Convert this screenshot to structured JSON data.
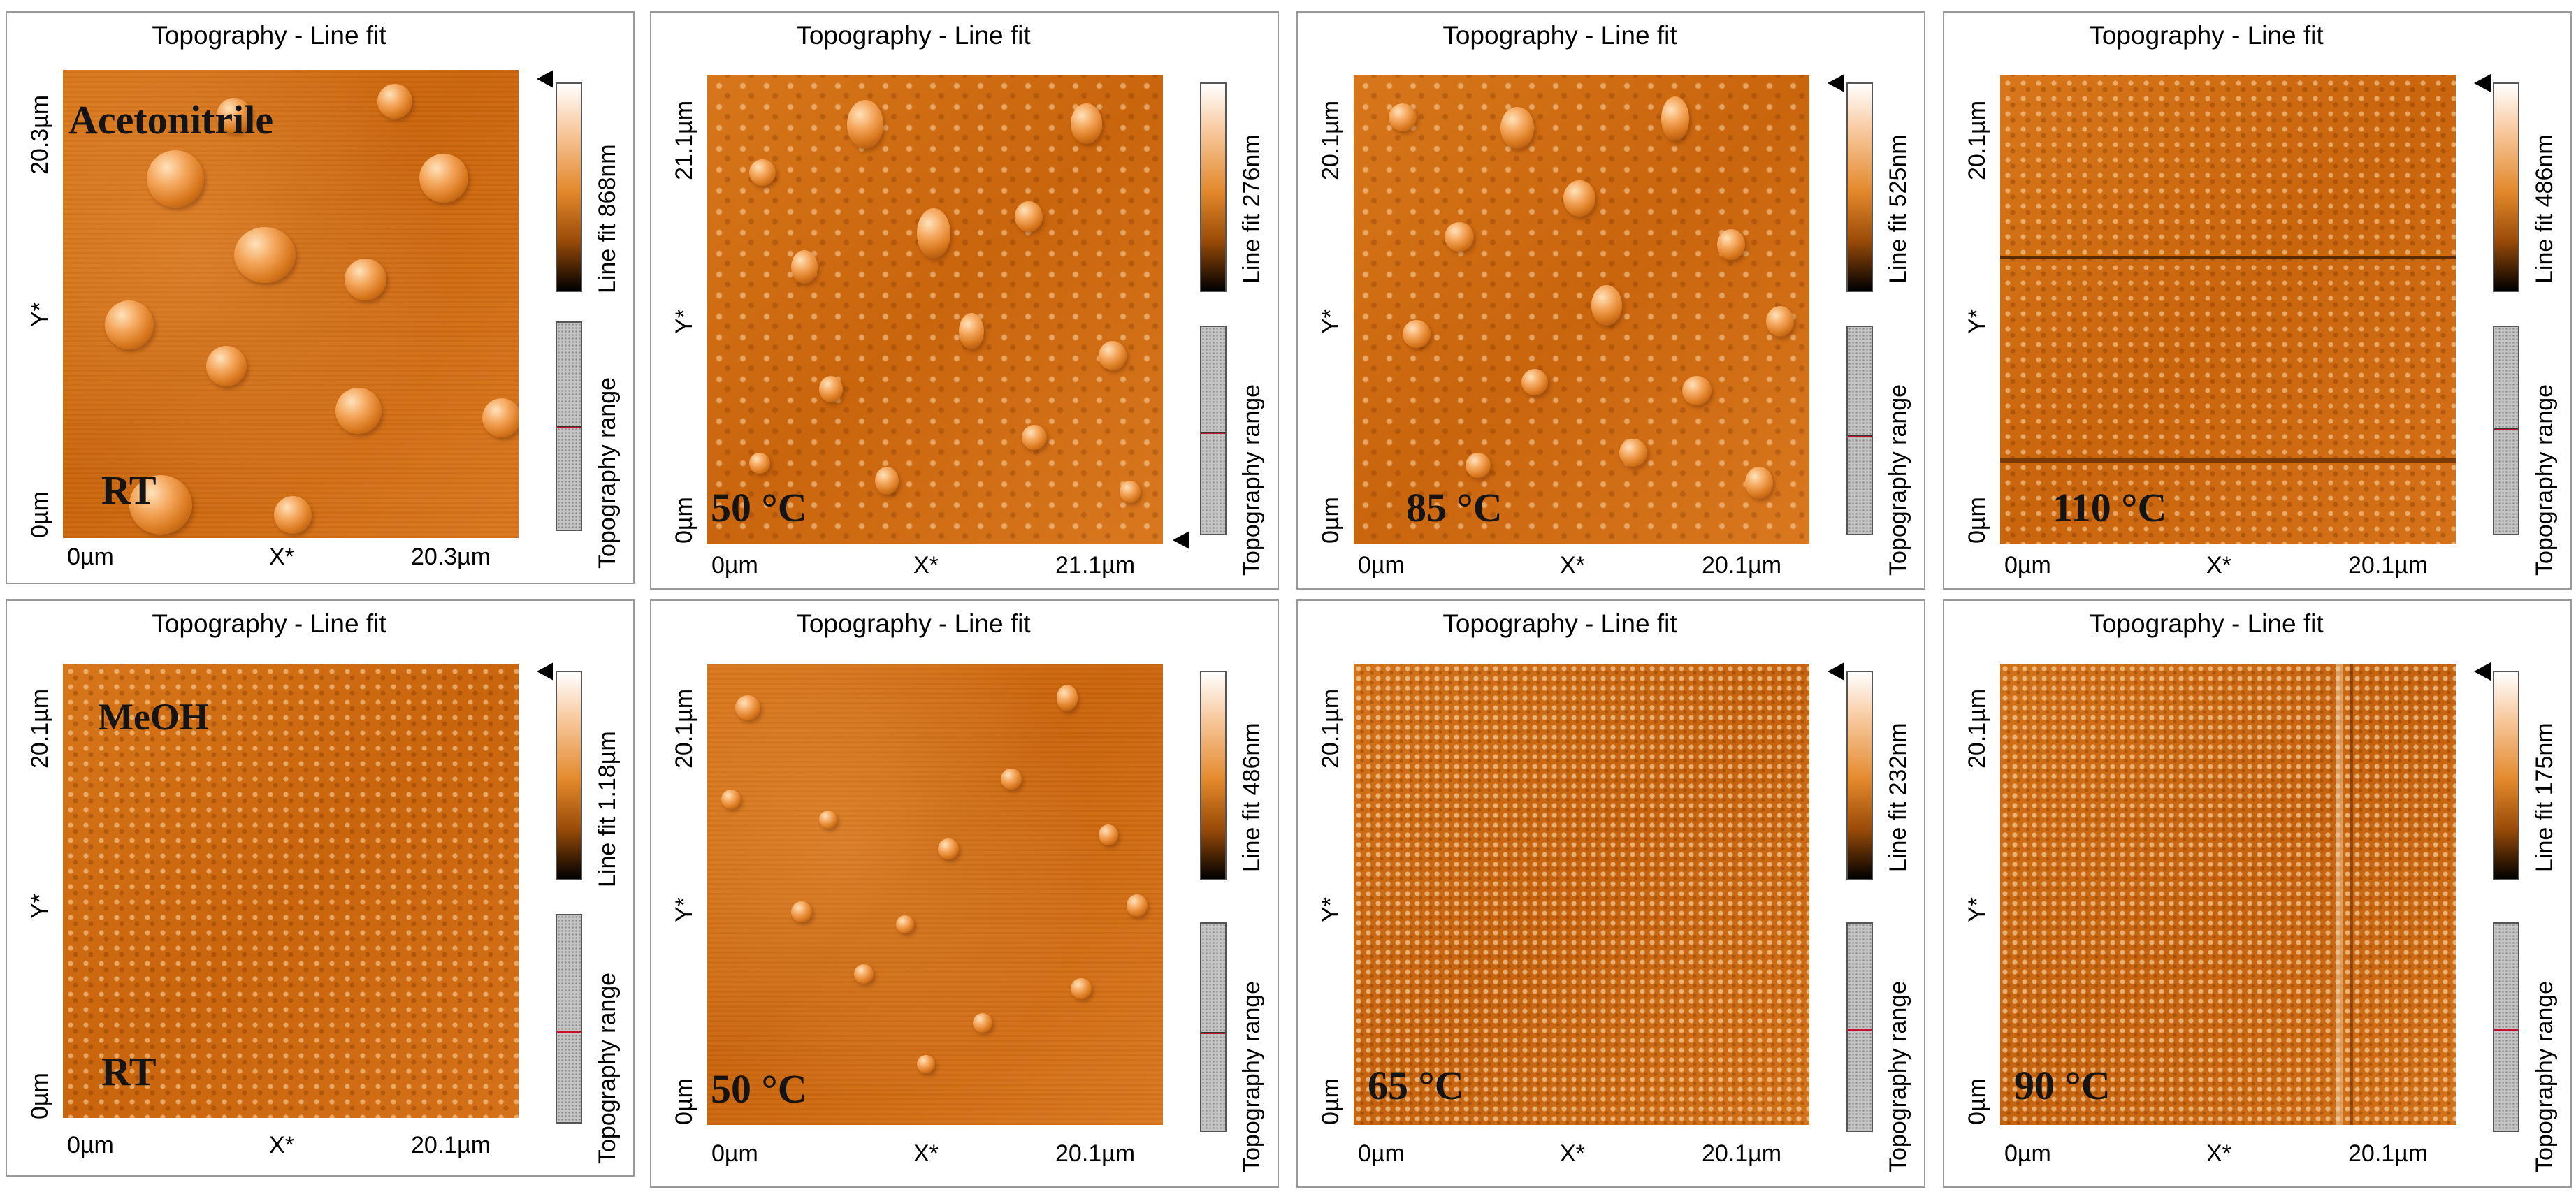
{
  "panels": [
    {
      "title": "Topography - Line fit",
      "y_top": "20.3µm",
      "y_bottom": "0µm",
      "y_axis": "Y*",
      "x_left": "0µm",
      "x_mid": "X*",
      "x_right": "20.3µm",
      "colorbar": "Line fit 868nm",
      "range": "Topography range",
      "label_top": "Acetonitrile",
      "label_bottom": "RT"
    },
    {
      "title": "Topography - Line fit",
      "y_top": "21.1µm",
      "y_bottom": "0µm",
      "y_axis": "Y*",
      "x_left": "0µm",
      "x_mid": "X*",
      "x_right": "21.1µm",
      "colorbar": "Line fit 276nm",
      "range": "Topography range",
      "label_bottom": "50 °C"
    },
    {
      "title": "Topography - Line fit",
      "y_top": "20.1µm",
      "y_bottom": "0µm",
      "y_axis": "Y*",
      "x_left": "0µm",
      "x_mid": "X*",
      "x_right": "20.1µm",
      "colorbar": "Line fit 525nm",
      "range": "Topography range",
      "label_bottom": "85 °C"
    },
    {
      "title": "Topography - Line fit",
      "y_top": "20.1µm",
      "y_bottom": "0µm",
      "y_axis": "Y*",
      "x_left": "0µm",
      "x_mid": "X*",
      "x_right": "20.1µm",
      "colorbar": "Line fit 486nm",
      "range": "Topography range",
      "label_bottom": "110 °C"
    },
    {
      "title": "Topography - Line fit",
      "y_top": "20.1µm",
      "y_bottom": "0µm",
      "y_axis": "Y*",
      "x_left": "0µm",
      "x_mid": "X*",
      "x_right": "20.1µm",
      "colorbar": "Line fit 1.18µm",
      "range": "Topography range",
      "label_top": "MeOH",
      "label_bottom": "RT"
    },
    {
      "title": "Topography - Line fit",
      "y_top": "20.1µm",
      "y_bottom": "0µm",
      "y_axis": "Y*",
      "x_left": "0µm",
      "x_mid": "X*",
      "x_right": "20.1µm",
      "colorbar": "Line fit 486nm",
      "range": "Topography range",
      "label_bottom": "50 °C"
    },
    {
      "title": "Topography - Line fit",
      "y_top": "20.1µm",
      "y_bottom": "0µm",
      "y_axis": "Y*",
      "x_left": "0µm",
      "x_mid": "X*",
      "x_right": "20.1µm",
      "colorbar": "Line fit 232nm",
      "range": "Topography range",
      "label_bottom": "65 °C"
    },
    {
      "title": "Topography - Line fit",
      "y_top": "20.1µm",
      "y_bottom": "0µm",
      "y_axis": "Y*",
      "x_left": "0µm",
      "x_mid": "X*",
      "x_right": "20.1µm",
      "colorbar": "Line fit 175nm",
      "range": "Topography range",
      "label_bottom": "90 °C"
    }
  ]
}
